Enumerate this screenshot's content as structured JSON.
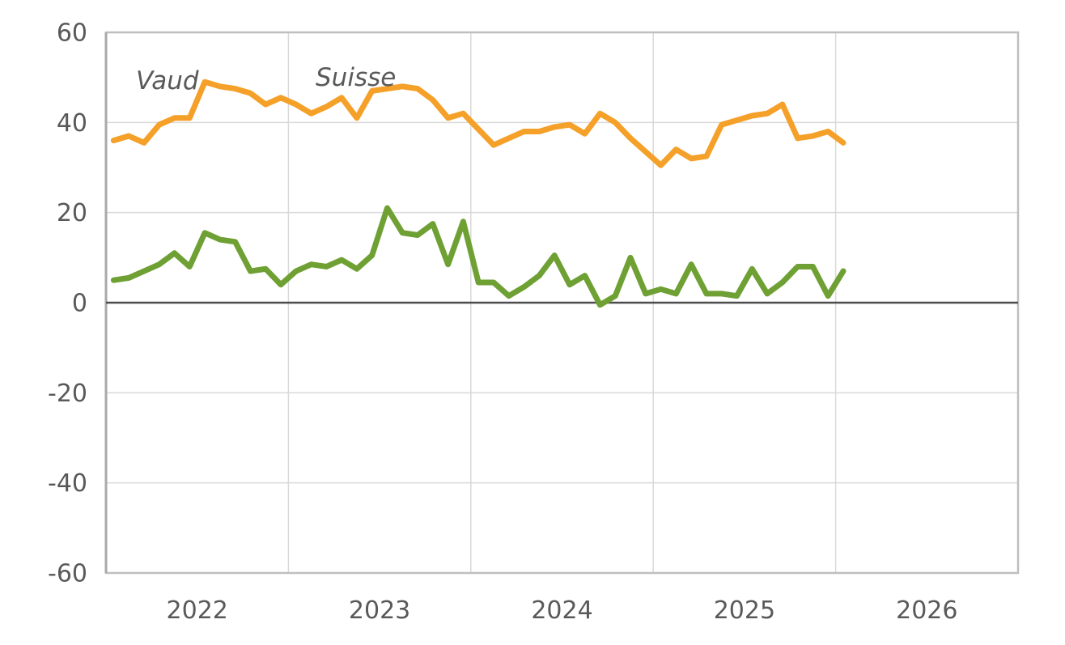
{
  "chart_data": {
    "type": "line",
    "ylim": [
      -60,
      60
    ],
    "yticks": [
      60,
      40,
      20,
      0,
      -20,
      -40,
      -60
    ],
    "grid": true,
    "legend_position": "inline-labels-top-left",
    "x_axis": {
      "year_labels": [
        "2022",
        "2023",
        "2024",
        "2025",
        "2026"
      ],
      "months_total": 60,
      "data_start": "2022-01",
      "data_end": "2026-01"
    },
    "months": [
      "2022-01",
      "2022-02",
      "2022-03",
      "2022-04",
      "2022-05",
      "2022-06",
      "2022-07",
      "2022-08",
      "2022-09",
      "2022-10",
      "2022-11",
      "2022-12",
      "2023-01",
      "2023-02",
      "2023-03",
      "2023-04",
      "2023-05",
      "2023-06",
      "2023-07",
      "2023-08",
      "2023-09",
      "2023-10",
      "2023-11",
      "2023-12",
      "2024-01",
      "2024-02",
      "2024-03",
      "2024-04",
      "2024-05",
      "2024-06",
      "2024-07",
      "2024-08",
      "2024-09",
      "2024-10",
      "2024-11",
      "2024-12",
      "2025-01",
      "2025-02",
      "2025-03",
      "2025-04",
      "2025-05",
      "2025-06",
      "2025-07",
      "2025-08",
      "2025-09",
      "2025-10",
      "2025-11",
      "2025-12",
      "2026-01"
    ],
    "series": [
      {
        "name": "Vaud",
        "color": "#6FA033",
        "label_color": "#569128",
        "values": [
          5,
          5.5,
          7,
          8.5,
          11,
          8,
          15.5,
          14,
          13.5,
          7,
          7.5,
          4,
          7,
          8.5,
          8,
          9.5,
          7.5,
          10.5,
          21,
          15.5,
          15,
          17.5,
          8.5,
          18,
          4.5,
          4.5,
          1.5,
          3.5,
          6,
          10.5,
          4,
          6,
          -0.5,
          1.5,
          10,
          2,
          3,
          2,
          8.5,
          2,
          2,
          1.5,
          7.5,
          2,
          4.5,
          8,
          8,
          1.5,
          7
        ]
      },
      {
        "name": "Suisse",
        "color": "#F5A028",
        "label_color": "#F0932C",
        "values": [
          36,
          37,
          35.5,
          39.5,
          41,
          41,
          49,
          48,
          47.5,
          46.5,
          44,
          45.5,
          44,
          42,
          43.5,
          45.5,
          41,
          47,
          47.5,
          48,
          47.5,
          45,
          41,
          42,
          38.5,
          35,
          36.5,
          38,
          38,
          39,
          39.5,
          37.5,
          42,
          40,
          36.5,
          33.5,
          30.5,
          34,
          32,
          32.5,
          39.5,
          40.5,
          41.5,
          42,
          44,
          36.5,
          37,
          38,
          35.5
        ]
      }
    ],
    "colors": {
      "grid": "#D9D9D9",
      "border": "#BFBFBF",
      "axis_left": "#A9A9A9",
      "zero_line": "#4D4D4D",
      "tick_text": "#595959"
    }
  }
}
